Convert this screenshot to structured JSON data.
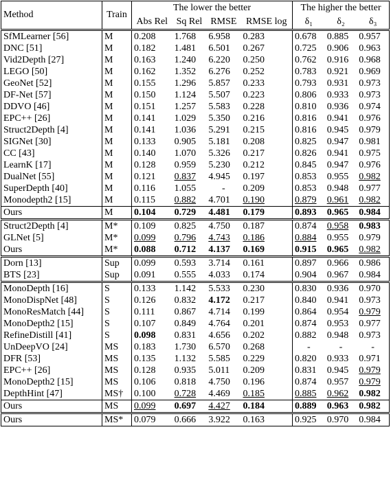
{
  "table": {
    "header": {
      "method": "Method",
      "train": "Train",
      "lower": "The lower the better",
      "higher": "The higher the better",
      "columns": [
        "Abs Rel",
        "Sq Rel",
        "RMSE",
        "RMSE log",
        "δ₁",
        "δ₂",
        "δ₃"
      ]
    },
    "sections": [
      [
        [
          "SfMLearner [56]",
          "M",
          "0.208",
          "1.768",
          "6.958",
          "0.283",
          "0.678",
          "0.885",
          "0.957"
        ],
        [
          "DNC [51]",
          "M",
          "0.182",
          "1.481",
          "6.501",
          "0.267",
          "0.725",
          "0.906",
          "0.963"
        ],
        [
          "Vid2Depth [27]",
          "M",
          "0.163",
          "1.240",
          "6.220",
          "0.250",
          "0.762",
          "0.916",
          "0.968"
        ],
        [
          "LEGO [50]",
          "M",
          "0.162",
          "1.352",
          "6.276",
          "0.252",
          "0.783",
          "0.921",
          "0.969"
        ],
        [
          "GeoNet [52]",
          "M",
          "0.155",
          "1.296",
          "5.857",
          "0.233",
          "0.793",
          "0.931",
          "0.973"
        ],
        [
          "DF-Net [57]",
          "M",
          "0.150",
          "1.124",
          "5.507",
          "0.223",
          "0.806",
          "0.933",
          "0.973"
        ],
        [
          "DDVO [46]",
          "M",
          "0.151",
          "1.257",
          "5.583",
          "0.228",
          "0.810",
          "0.936",
          "0.974"
        ],
        [
          "EPC++ [26]",
          "M",
          "0.141",
          "1.029",
          "5.350",
          "0.216",
          "0.816",
          "0.941",
          "0.976"
        ],
        [
          "Struct2Depth [4]",
          "M",
          "0.141",
          "1.036",
          "5.291",
          "0.215",
          "0.816",
          "0.945",
          "0.979"
        ],
        [
          "SIGNet [30]",
          "M",
          "0.133",
          "0.905",
          "5.181",
          "0.208",
          "0.825",
          "0.947",
          "0.981"
        ],
        [
          "CC [43]",
          "M",
          "0.140",
          "1.070",
          "5.326",
          "0.217",
          "0.826",
          "0.941",
          "0.975"
        ],
        [
          "LearnK [17]",
          "M",
          "0.128",
          "0.959",
          "5.230",
          "0.212",
          "0.845",
          "0.947",
          "0.976"
        ],
        [
          "DualNet [55]",
          "M",
          "0.121",
          "0.837",
          "4.945",
          "0.197",
          "0.853",
          "0.955",
          "0.982"
        ],
        [
          "SuperDepth [40]",
          "M",
          "0.116",
          "1.055",
          "-",
          "0.209",
          "0.853",
          "0.948",
          "0.977"
        ],
        [
          "Monodepth2 [15]",
          "M",
          "0.115",
          "0.882",
          "4.701",
          "0.190",
          "0.879",
          "0.961",
          "0.982"
        ],
        [
          "Ours",
          "M",
          "0.104",
          "0.729",
          "4.481",
          "0.179",
          "0.893",
          "0.965",
          "0.984"
        ]
      ],
      [
        [
          "Struct2Depth [4]",
          "M*",
          "0.109",
          "0.825",
          "4.750",
          "0.187",
          "0.874",
          "0.958",
          "0.983"
        ],
        [
          "GLNet [5]",
          "M*",
          "0.099",
          "0.796",
          "4.743",
          "0.186",
          "0.884",
          "0.955",
          "0.979"
        ],
        [
          "Ours",
          "M*",
          "0.088",
          "0.712",
          "4.137",
          "0.169",
          "0.915",
          "0.965",
          "0.982"
        ]
      ],
      [
        [
          "Dorn [13]",
          "Sup",
          "0.099",
          "0.593",
          "3.714",
          "0.161",
          "0.897",
          "0.966",
          "0.986"
        ],
        [
          "BTS [23]",
          "Sup",
          "0.091",
          "0.555",
          "4.033",
          "0.174",
          "0.904",
          "0.967",
          "0.984"
        ]
      ],
      [
        [
          "MonoDepth [16]",
          "S",
          "0.133",
          "1.142",
          "5.533",
          "0.230",
          "0.830",
          "0.936",
          "0.970"
        ],
        [
          "MonoDispNet [48]",
          "S",
          "0.126",
          "0.832",
          "4.172",
          "0.217",
          "0.840",
          "0.941",
          "0.973"
        ],
        [
          "MonoResMatch [44]",
          "S",
          "0.111",
          "0.867",
          "4.714",
          "0.199",
          "0.864",
          "0.954",
          "0.979"
        ],
        [
          "MonoDepth2 [15]",
          "S",
          "0.107",
          "0.849",
          "4.764",
          "0.201",
          "0.874",
          "0.953",
          "0.977"
        ],
        [
          "RefineDistill [41]",
          "S",
          "0.098",
          "0.831",
          "4.656",
          "0.202",
          "0.882",
          "0.948",
          "0.973"
        ],
        [
          "UnDeepVO [24]",
          "MS",
          "0.183",
          "1.730",
          "6.570",
          "0.268",
          "-",
          "-",
          "-"
        ],
        [
          "DFR [53]",
          "MS",
          "0.135",
          "1.132",
          "5.585",
          "0.229",
          "0.820",
          "0.933",
          "0.971"
        ],
        [
          "EPC++ [26]",
          "MS",
          "0.128",
          "0.935",
          "5.011",
          "0.209",
          "0.831",
          "0.945",
          "0.979"
        ],
        [
          "MonoDepth2 [15]",
          "MS",
          "0.106",
          "0.818",
          "4.750",
          "0.196",
          "0.874",
          "0.957",
          "0.979"
        ],
        [
          "DepthHint [47]",
          "MS†",
          "0.100",
          "0.728",
          "4.469",
          "0.185",
          "0.885",
          "0.962",
          "0.982"
        ],
        [
          "Ours",
          "MS",
          "0.099",
          "0.697",
          "4.427",
          "0.184",
          "0.889",
          "0.963",
          "0.982"
        ]
      ],
      [
        [
          "Ours",
          "MS*",
          "0.079",
          "0.666",
          "3.922",
          "0.163",
          "0.925",
          "0.970",
          "0.984"
        ]
      ]
    ]
  }
}
